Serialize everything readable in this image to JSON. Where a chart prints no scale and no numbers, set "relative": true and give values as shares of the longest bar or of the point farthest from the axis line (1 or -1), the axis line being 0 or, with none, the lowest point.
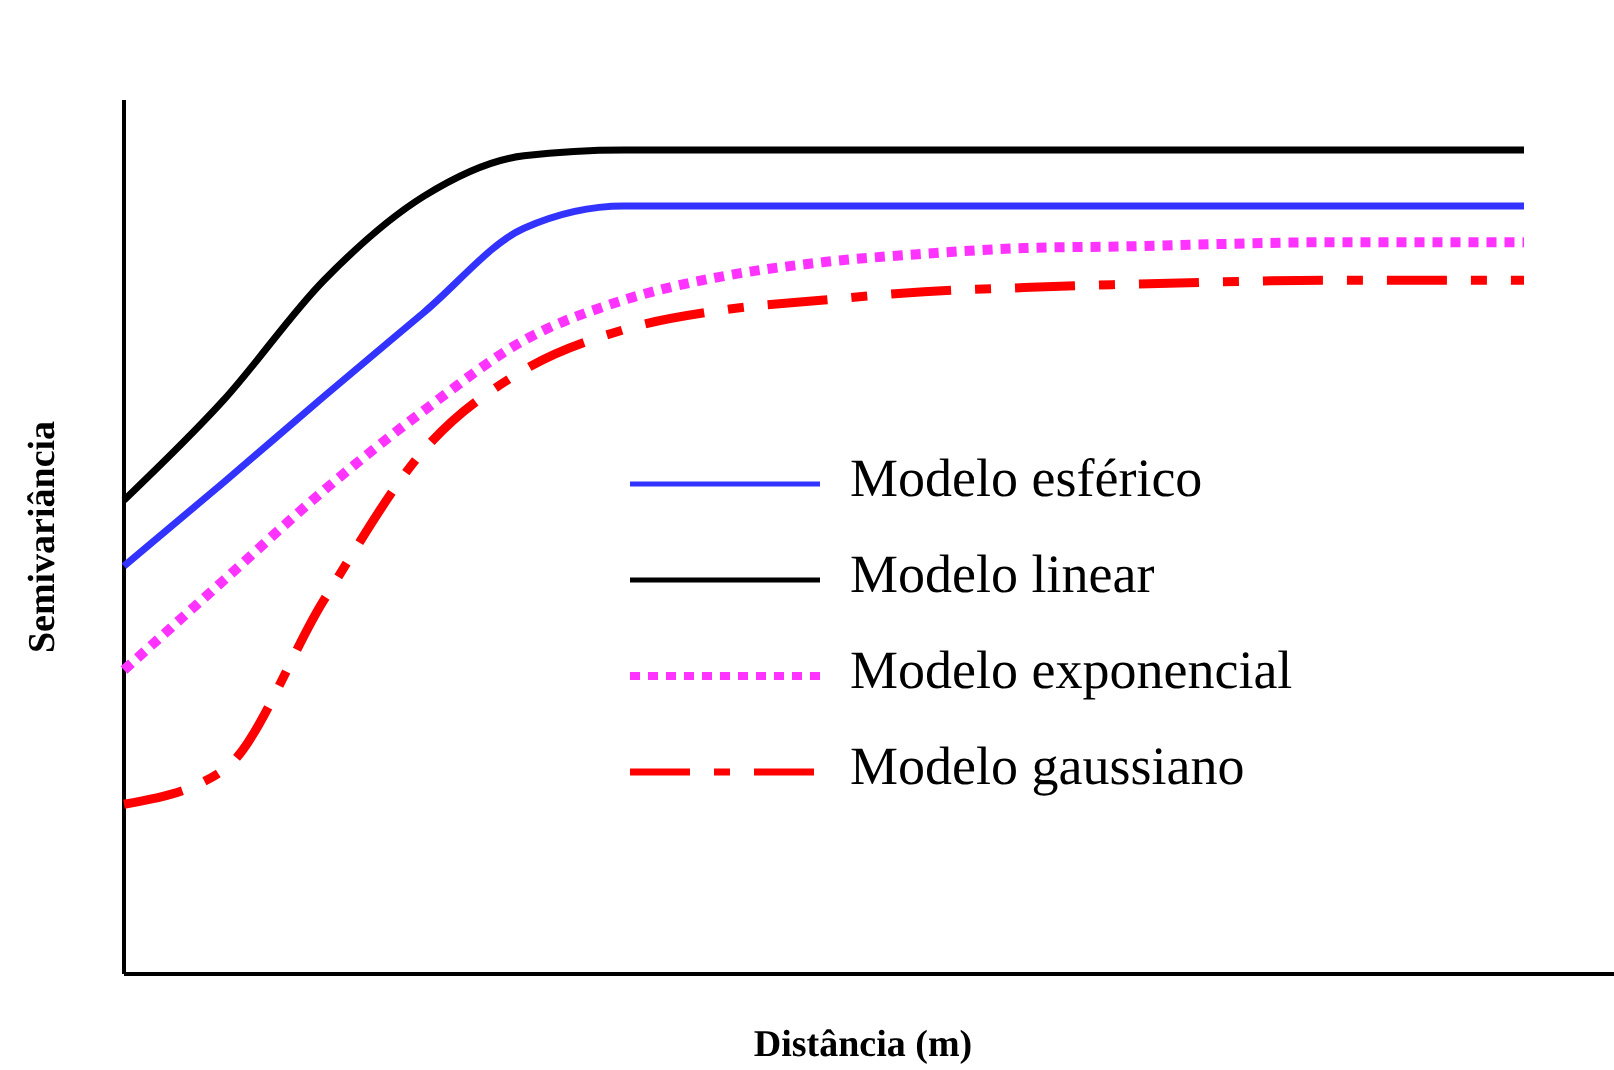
{
  "chart_data": {
    "type": "line",
    "relative": true,
    "xlabel": "Distância (m)",
    "ylabel": "Semivariância",
    "legend": "right",
    "marker": "none",
    "categories": [
      null,
      null,
      null,
      null,
      null,
      null,
      null,
      null,
      null,
      null,
      null,
      null,
      null,
      null,
      null
    ],
    "series": [
      {
        "name": "Modelo esférico",
        "color": "#3333ff",
        "line_style": "solid",
        "values": [
          0.495,
          0.597,
          0.701,
          0.803,
          0.905,
          0.932,
          0.932,
          0.932,
          0.932,
          0.932,
          0.932,
          0.932,
          0.932,
          0.932,
          0.932
        ]
      },
      {
        "name": "Modelo linear",
        "color": "#000000",
        "line_style": "solid",
        "values": [
          0.575,
          0.697,
          0.842,
          0.944,
          0.993,
          1,
          1,
          1,
          1,
          1,
          1,
          1,
          1,
          1,
          1
        ]
      },
      {
        "name": "Modelo exponencial",
        "color": "#ff33ff",
        "line_style": "dotted",
        "values": [
          0.369,
          0.478,
          0.587,
          0.684,
          0.769,
          0.818,
          0.847,
          0.864,
          0.874,
          0.881,
          0.883,
          0.886,
          0.888,
          0.888,
          0.888
        ]
      },
      {
        "name": "Modelo gaussiano",
        "color": "#ff0000",
        "line_style": "dashed",
        "values": [
          0.206,
          0.248,
          0.454,
          0.636,
          0.733,
          0.782,
          0.806,
          0.818,
          0.828,
          0.833,
          0.837,
          0.84,
          0.842,
          0.842,
          0.842
        ]
      }
    ]
  }
}
